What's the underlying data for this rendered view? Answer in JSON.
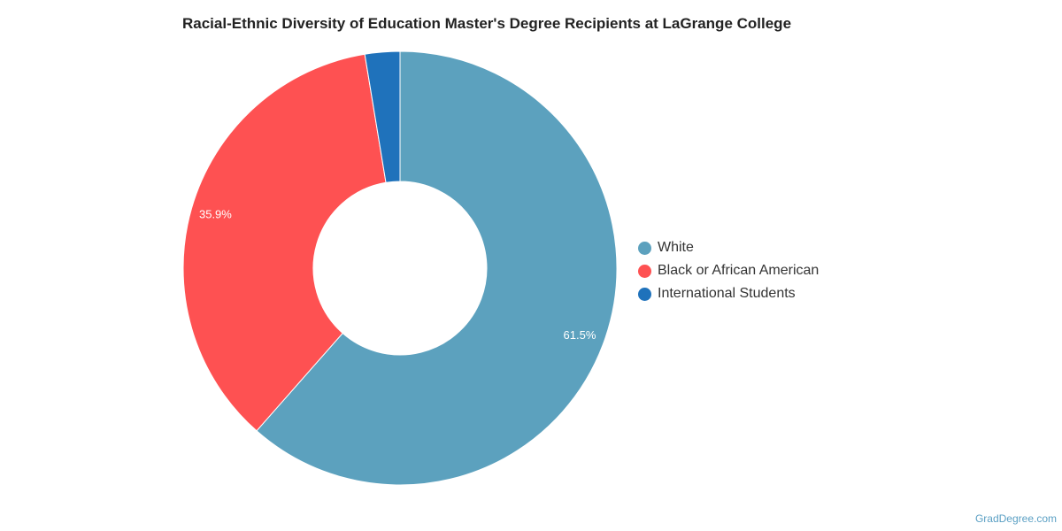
{
  "chart_data": {
    "type": "pie",
    "title": "Racial-Ethnic Diversity of Education Master's Degree Recipients at LaGrange College",
    "donut": true,
    "categories": [
      "White",
      "Black or African American",
      "International Students"
    ],
    "values": [
      61.5,
      35.9,
      2.6
    ],
    "data_labels": [
      "61.5%",
      "35.9%",
      ""
    ],
    "colors": [
      "#5ca1be",
      "#fe5152",
      "#1f72bb"
    ],
    "legend_placement": "right"
  },
  "watermark": "GradDegree.com"
}
